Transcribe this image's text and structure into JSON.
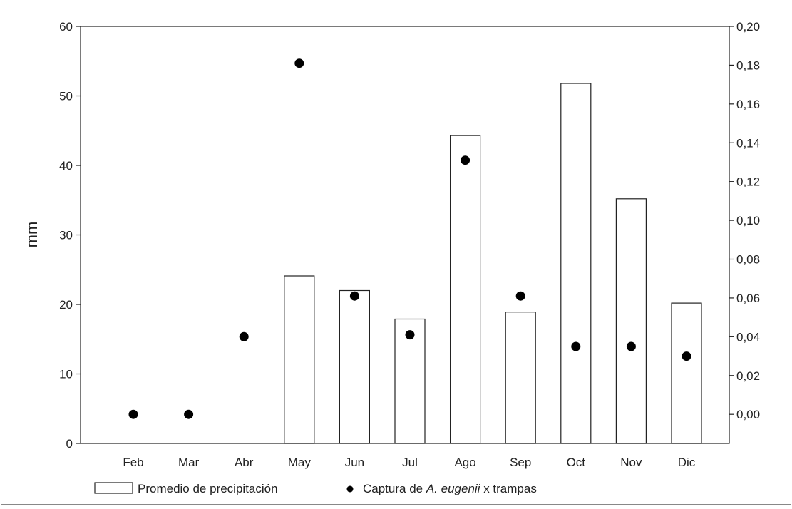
{
  "chart_data": {
    "type": "bar",
    "categories": [
      "Feb",
      "Mar",
      "Abr",
      "May",
      "Jun",
      "Jul",
      "Ago",
      "Sep",
      "Oct",
      "Nov",
      "Dic"
    ],
    "ylabel": "mm",
    "ylim": [
      0,
      60
    ],
    "yticks": [
      "0",
      "10",
      "20",
      "30",
      "40",
      "50",
      "60"
    ],
    "y2lim": [
      -0.015,
      0.2
    ],
    "y2ticks": [
      "0,00",
      "0,02",
      "0,04",
      "0,06",
      "0,08",
      "0,10",
      "0,12",
      "0,14",
      "0,16",
      "0,18",
      "0,20"
    ],
    "series": [
      {
        "name": "Promedio de precipitación",
        "type": "bar",
        "axis": "left",
        "values": [
          null,
          null,
          null,
          24.1,
          22.0,
          17.9,
          44.3,
          18.9,
          51.8,
          35.2,
          20.2
        ]
      },
      {
        "name": "Captura de A. eugenii x trampas",
        "type": "scatter",
        "axis": "right",
        "values": [
          0.0,
          0.0,
          0.04,
          0.181,
          0.061,
          0.041,
          0.131,
          0.061,
          0.035,
          0.035,
          0.03
        ]
      }
    ],
    "legend": {
      "position": "bottom",
      "bar_label": "Promedio de precipitación",
      "scatter_label_prefix": "Captura de ",
      "scatter_label_species": "A. eugenii",
      "scatter_label_suffix": " x trampas"
    },
    "grid": false
  }
}
